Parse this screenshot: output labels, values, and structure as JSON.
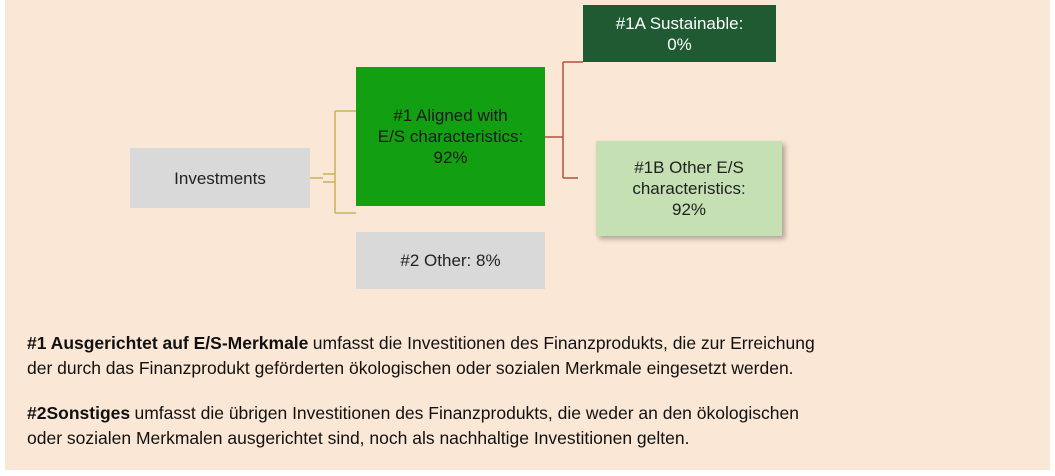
{
  "nodes": [
    {
      "id": "investments",
      "lines": [
        "Investments"
      ]
    },
    {
      "id": "aligned",
      "lines": [
        "#1 Aligned with",
        "E/S characteristics:",
        "92%"
      ]
    },
    {
      "id": "other",
      "lines": [
        "#2 Other: 8%"
      ]
    },
    {
      "id": "sustainable",
      "lines": [
        "#1A Sustainable:",
        "0%"
      ]
    },
    {
      "id": "other-es",
      "lines": [
        "#1B Other E/S",
        "characteristics:",
        "92%"
      ]
    }
  ],
  "paragraphs": [
    {
      "bold": "#1 Ausgerichtet auf E/S-Merkmale",
      "lines": [
        "umfasst die Investitionen des Finanzprodukts, die zur Erreichung",
        "der durch das Finanzprodukt geförderten ökologischen oder sozialen Merkmale eingesetzt werden."
      ]
    },
    {
      "bold": "#2Sonstiges",
      "lines": [
        "umfasst die übrigen Investitionen des Finanzprodukts, die weder an den ökologischen",
        "oder sozialen Merkmalen ausgerichtet sind, noch als nachhaltige Investitionen gelten."
      ]
    }
  ]
}
